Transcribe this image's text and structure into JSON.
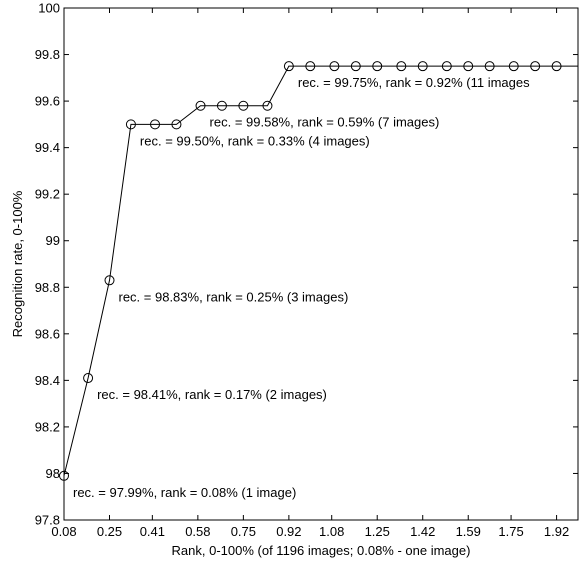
{
  "chart_data": {
    "type": "line",
    "xlabel": "Rank, 0-100% (of 1196 images; 0.08% - one image)",
    "ylabel": "Recognition rate, 0-100%",
    "xlim": [
      0.08,
      2.0
    ],
    "ylim": [
      97.8,
      100
    ],
    "x_tick_labels": [
      "0.08",
      "0.25",
      "0.41",
      "0.58",
      "0.75",
      "0.92",
      "1.08",
      "1.25",
      "1.42",
      "1.59",
      "1.75",
      "1.92"
    ],
    "y_tick_labels": [
      "97.8",
      "98",
      "98.2",
      "98.4",
      "98.6",
      "98.8",
      "99",
      "99.2",
      "99.4",
      "99.6",
      "99.8",
      "100"
    ],
    "series": [
      {
        "marker": "open-circle",
        "color": "#000000",
        "x": [
          0.08,
          0.17,
          0.25,
          0.33,
          0.42,
          0.5,
          0.59,
          0.67,
          0.75,
          0.84,
          0.92,
          1.0,
          1.09,
          1.17,
          1.25,
          1.34,
          1.42,
          1.51,
          1.59,
          1.67,
          1.76,
          1.84,
          1.92
        ],
        "y": [
          97.99,
          98.41,
          98.83,
          99.5,
          99.5,
          99.5,
          99.58,
          99.58,
          99.58,
          99.58,
          99.75,
          99.75,
          99.75,
          99.75,
          99.75,
          99.75,
          99.75,
          99.75,
          99.75,
          99.75,
          99.75,
          99.75,
          99.75
        ],
        "line_end": {
          "x": 2.0,
          "y": 99.75
        }
      }
    ],
    "annotations": [
      {
        "text": "rec. =  97.99%, rank =  0.08% (1 image)",
        "x": 0.08,
        "y": 97.99
      },
      {
        "text": "rec. =  98.41%, rank =  0.17% (2 images)",
        "x": 0.17,
        "y": 98.41
      },
      {
        "text": "rec. =  98.83%, rank =  0.25% (3 images)",
        "x": 0.25,
        "y": 98.83
      },
      {
        "text": "rec. =  99.50%, rank =  0.33% (4 images)",
        "x": 0.33,
        "y": 99.5
      },
      {
        "text": "rec. =  99.58%, rank =  0.59% (7 images)",
        "x": 0.59,
        "y": 99.58
      },
      {
        "text": "rec. =  99.75%, rank =  0.92% (11 images",
        "x": 0.92,
        "y": 99.75
      }
    ]
  }
}
